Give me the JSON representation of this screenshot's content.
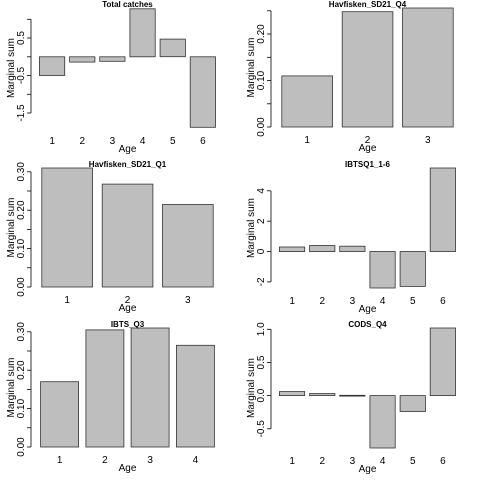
{
  "colors": {
    "bar_fill": "#bebebe",
    "bar_stroke": "#333333",
    "axis": "#000000"
  },
  "chart_data": [
    {
      "type": "bar",
      "title": "Total catches",
      "xlabel": "Age",
      "ylabel": "Marginal sum",
      "categories": [
        "1",
        "2",
        "3",
        "4",
        "5",
        "6"
      ],
      "values": [
        -0.5,
        -0.14,
        -0.12,
        1.28,
        0.47,
        -1.88
      ],
      "ylim": [
        -1.9,
        1.3
      ],
      "yticks": [
        -1.5,
        -1.0,
        -0.5,
        0.0,
        0.5,
        1.0
      ],
      "ytick_labels": [
        "-1.5",
        "",
        "-0.5",
        "",
        "0.5",
        ""
      ],
      "grid": false
    },
    {
      "type": "bar",
      "title": "Havfisken_SD21_Q4",
      "xlabel": "Age",
      "ylabel": "Marginal sum",
      "categories": [
        "1",
        "2",
        "3"
      ],
      "values": [
        0.11,
        0.248,
        0.256
      ],
      "ylim": [
        0.0,
        0.256
      ],
      "yticks": [
        0.0,
        0.05,
        0.1,
        0.15,
        0.2,
        0.25
      ],
      "ytick_labels": [
        "0.00",
        "",
        "0.10",
        "",
        "0.20",
        ""
      ],
      "grid": false
    },
    {
      "type": "bar",
      "title": "Havfisken_SD21_Q1",
      "xlabel": "Age",
      "ylabel": "Marginal sum",
      "categories": [
        "1",
        "2",
        "3"
      ],
      "values": [
        0.31,
        0.268,
        0.215
      ],
      "ylim": [
        0.0,
        0.31
      ],
      "yticks": [
        0.0,
        0.05,
        0.1,
        0.15,
        0.2,
        0.25,
        0.3
      ],
      "ytick_labels": [
        "0.00",
        "",
        "0.10",
        "",
        "0.20",
        "",
        "0.30"
      ],
      "grid": false
    },
    {
      "type": "bar",
      "title": "IBTSQ1_1-6",
      "xlabel": "Age",
      "ylabel": "Marginal sum",
      "categories": [
        "1",
        "2",
        "3",
        "4",
        "5",
        "6"
      ],
      "values": [
        0.3,
        0.4,
        0.35,
        -2.4,
        -2.3,
        5.5
      ],
      "ylim": [
        -2.4,
        5.5
      ],
      "yticks": [
        -2,
        0,
        2,
        4
      ],
      "ytick_labels": [
        "-2",
        "0",
        "2",
        "4"
      ],
      "grid": false
    },
    {
      "type": "bar",
      "title": "IBTS_Q3",
      "xlabel": "Age",
      "ylabel": "Marginal sum",
      "categories": [
        "1",
        "2",
        "3",
        "4"
      ],
      "values": [
        0.17,
        0.305,
        0.31,
        0.265
      ],
      "ylim": [
        0.0,
        0.31
      ],
      "yticks": [
        0.0,
        0.05,
        0.1,
        0.15,
        0.2,
        0.25,
        0.3
      ],
      "ytick_labels": [
        "0.00",
        "",
        "0.10",
        "",
        "0.20",
        "",
        "0.30"
      ],
      "grid": false
    },
    {
      "type": "bar",
      "title": "CODS_Q4",
      "xlabel": "Age",
      "ylabel": "Marginal sum",
      "categories": [
        "1",
        "2",
        "3",
        "4",
        "5",
        "6"
      ],
      "values": [
        0.06,
        0.03,
        0.005,
        -0.79,
        -0.24,
        1.02
      ],
      "ylim": [
        -0.79,
        1.02
      ],
      "yticks": [
        -0.5,
        0.0,
        0.5,
        1.0
      ],
      "ytick_labels": [
        "-0.5",
        "0.0",
        "0.5",
        "1.0"
      ],
      "grid": false
    }
  ]
}
